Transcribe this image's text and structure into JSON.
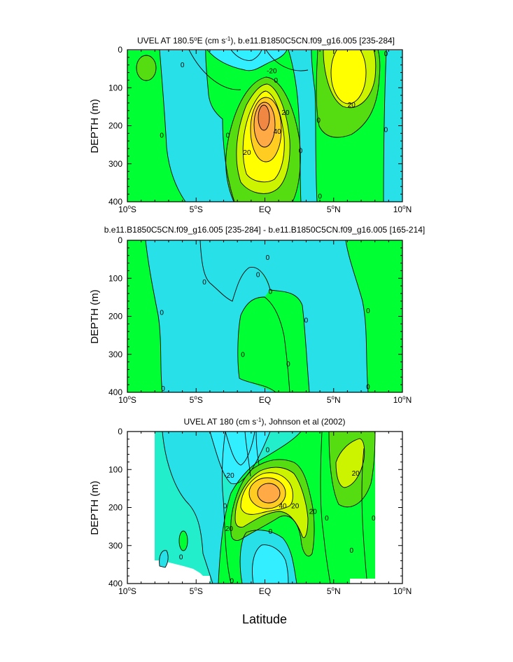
{
  "chart_data": [
    {
      "type": "contour",
      "title_parts": [
        "UVEL AT 180.5",
        "o",
        "E (cm s",
        "-1",
        "), b.e11.B1850C5CN.f09_g16.005 [235-284]"
      ],
      "ylabel": "DEPTH (m)",
      "xlabel": "",
      "xlim": [
        -10,
        10
      ],
      "ylim": [
        400,
        0
      ],
      "xticks": [
        -10,
        -5,
        0,
        5,
        10
      ],
      "yticks": [
        0,
        100,
        200,
        300,
        400
      ],
      "contour_interval": 10,
      "features": [
        {
          "kind": "positive-core",
          "center_lat": 0,
          "center_depth": 170,
          "max_value": 60
        },
        {
          "kind": "positive-core",
          "center_lat": 6,
          "center_depth": 70,
          "max_value": 30
        },
        {
          "kind": "positive-core",
          "center_lat": -9,
          "center_depth": 40,
          "max_value": 10
        },
        {
          "kind": "negative-surface",
          "center_lat": -1,
          "center_depth": 10,
          "min_value": -20
        }
      ],
      "contour_labels": [
        {
          "text": "0",
          "lat": -7.5,
          "depth": 225
        },
        {
          "text": "0",
          "lat": -6,
          "depth": 40
        },
        {
          "text": "0",
          "lat": -2.7,
          "depth": 225
        },
        {
          "text": "-20",
          "lat": 0.5,
          "depth": 55
        },
        {
          "text": "0",
          "lat": 0.8,
          "depth": 80
        },
        {
          "text": "20",
          "lat": 1.5,
          "depth": 165
        },
        {
          "text": "40",
          "lat": 0.9,
          "depth": 215
        },
        {
          "text": "20",
          "lat": -1.3,
          "depth": 270
        },
        {
          "text": "0",
          "lat": 2.6,
          "depth": 265
        },
        {
          "text": "0",
          "lat": 3.9,
          "depth": 185
        },
        {
          "text": "0",
          "lat": 4,
          "depth": 385
        },
        {
          "text": "20",
          "lat": 6.3,
          "depth": 145
        },
        {
          "text": "0",
          "lat": 8.8,
          "depth": 10
        },
        {
          "text": "0",
          "lat": 8.8,
          "depth": 210
        }
      ]
    },
    {
      "type": "contour",
      "title_parts": [
        "b.e11.B1850C5CN.f09_g16.005 [235-284] - b.e11.B1850C5CN.f09_g16.005 [165-214]"
      ],
      "ylabel": "DEPTH (m)",
      "xlabel": "",
      "xlim": [
        -10,
        10
      ],
      "ylim": [
        400,
        0
      ],
      "xticks": [
        -10,
        -5,
        0,
        5,
        10
      ],
      "yticks": [
        0,
        100,
        200,
        300,
        400
      ],
      "features": [
        {
          "kind": "positive-region",
          "lat_range": [
            -10,
            -7.5
          ],
          "value": 0
        },
        {
          "kind": "positive-region",
          "lat_range": [
            6,
            10
          ],
          "value": 0
        }
      ],
      "contour_labels": [
        {
          "text": "0",
          "lat": -7.5,
          "depth": 190
        },
        {
          "text": "0",
          "lat": -7.4,
          "depth": 390
        },
        {
          "text": "0",
          "lat": -4.4,
          "depth": 110
        },
        {
          "text": "0",
          "lat": -0.5,
          "depth": 90
        },
        {
          "text": "0",
          "lat": 0.2,
          "depth": 45
        },
        {
          "text": "0",
          "lat": 0.4,
          "depth": 135
        },
        {
          "text": "0",
          "lat": -1.6,
          "depth": 300
        },
        {
          "text": "0",
          "lat": 1.7,
          "depth": 325
        },
        {
          "text": "0",
          "lat": 3,
          "depth": 210
        },
        {
          "text": "0",
          "lat": 7.5,
          "depth": 185
        },
        {
          "text": "0",
          "lat": 7.5,
          "depth": 385
        }
      ]
    },
    {
      "type": "contour",
      "title_parts": [
        "UVEL AT 180 (cm s",
        "-1",
        "), Johnson et al (2002)"
      ],
      "ylabel": "DEPTH (m)",
      "xlabel": "Latitude",
      "xlim": [
        -10,
        10
      ],
      "ylim": [
        400,
        0
      ],
      "xticks": [
        -10,
        -5,
        0,
        5,
        10
      ],
      "yticks": [
        0,
        100,
        200,
        300,
        400
      ],
      "data_lat_range": [
        -8,
        8
      ],
      "features": [
        {
          "kind": "positive-core",
          "center_lat": 0.5,
          "center_depth": 170,
          "max_value": 50
        },
        {
          "kind": "positive-core",
          "center_lat": 6.2,
          "center_depth": 100,
          "max_value": 30
        },
        {
          "kind": "negative-surface",
          "center_lat": -1.5,
          "center_depth": 60,
          "min_value": -40
        },
        {
          "kind": "negative-deep",
          "center_lat": 0.5,
          "center_depth": 330,
          "min_value": -20
        }
      ],
      "contour_labels": [
        {
          "text": "-20",
          "lat": -2.6,
          "depth": 115
        },
        {
          "text": "0",
          "lat": -2.9,
          "depth": 195
        },
        {
          "text": "20",
          "lat": -2.6,
          "depth": 255
        },
        {
          "text": "40",
          "lat": 1.3,
          "depth": 195
        },
        {
          "text": "20",
          "lat": 2.2,
          "depth": 195
        },
        {
          "text": "0",
          "lat": 0.2,
          "depth": 48
        },
        {
          "text": "0",
          "lat": 0.4,
          "depth": 263
        },
        {
          "text": "20",
          "lat": 3.5,
          "depth": 210
        },
        {
          "text": "20",
          "lat": 6.6,
          "depth": 110
        },
        {
          "text": "0",
          "lat": 4.5,
          "depth": 228
        },
        {
          "text": "0",
          "lat": 6.3,
          "depth": 312
        },
        {
          "text": "0",
          "lat": 7.9,
          "depth": 228
        },
        {
          "text": "0",
          "lat": -2.4,
          "depth": 393
        },
        {
          "text": "0",
          "lat": -6.1,
          "depth": 330
        }
      ]
    }
  ],
  "colors": {
    "neg20": "#33eeff",
    "neg10": "#28e0e8",
    "zero_to_neg": "#22eecc",
    "pos0": "#00ff33",
    "pos10": "#55dd11",
    "pos20": "#ccf400",
    "pos30": "#ffff00",
    "pos40": "#ffcc22",
    "pos50": "#ffaa44",
    "pos60": "#f08844"
  }
}
